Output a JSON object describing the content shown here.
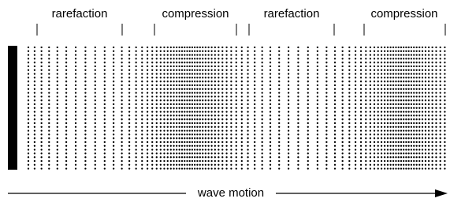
{
  "labels": [
    "rarefaction",
    "compression",
    "rarefaction",
    "compression"
  ],
  "motion_label": "wave motion"
}
